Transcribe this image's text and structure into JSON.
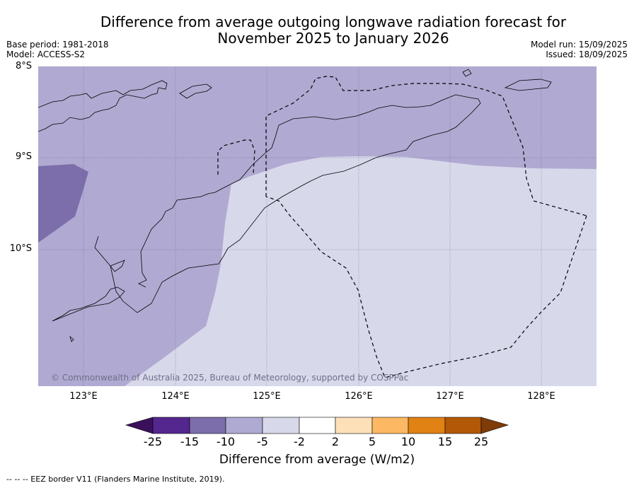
{
  "title_line1": "Difference from average outgoing longwave radiation forecast for",
  "title_line2": "November 2025 to January 2026",
  "base_period": "Base period: 1981-2018",
  "model": "Model: ACCESS-S2",
  "model_run": "Model run: 15/09/2025",
  "issued": "Issued: 18/09/2025",
  "lat_labels": [
    "8°S",
    "9°S",
    "10°S"
  ],
  "lon_labels": [
    "123°E",
    "124°E",
    "125°E",
    "126°E",
    "127°E",
    "128°E"
  ],
  "copyright": "© Commonwealth of Australia 2025, Bureau of Meteorology, supported by COSPPac",
  "colorbar": {
    "title": "Difference from average (W/m2)",
    "labels": [
      "-25",
      "-15",
      "-10",
      "-5",
      "-2",
      "2",
      "5",
      "10",
      "15",
      "25"
    ],
    "colors": [
      "#3b0f5c",
      "#54278f",
      "#7b6eab",
      "#aeaad2",
      "#d8d8eb",
      "#ffffff",
      "#fde0b8",
      "#fdb863",
      "#e08214",
      "#b35806",
      "#7f3b08"
    ]
  },
  "footer": "-- -- -- EEZ border V11 (Flanders Marine Institute, 2019)."
}
